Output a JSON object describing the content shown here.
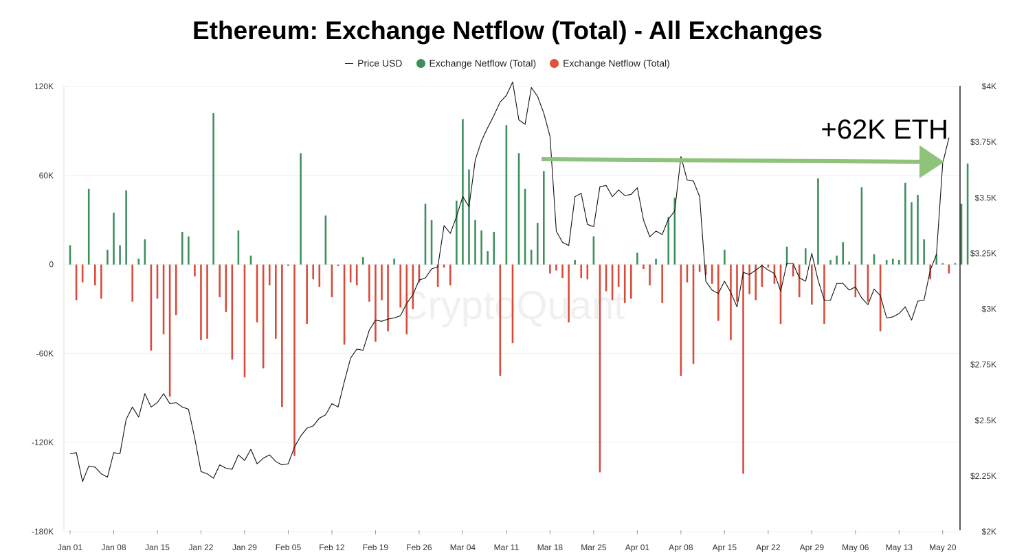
{
  "chart_data": {
    "type": "bar",
    "title": "Ethereum: Exchange Netflow (Total) - All Exchanges",
    "legend": [
      {
        "label": "Price USD",
        "kind": "line",
        "color": "#222222"
      },
      {
        "label": "Exchange Netflow (Total)",
        "kind": "dot",
        "color": "#3e8f5e"
      },
      {
        "label": "Exchange Netflow (Total)",
        "kind": "dot",
        "color": "#e0503c"
      }
    ],
    "colors": {
      "positive": "#3e8f5e",
      "negative": "#d84b3a",
      "price": "#111111",
      "arrow": "#8fc27a"
    },
    "watermark": "CryptoQuant",
    "annotation": "+62K ETH",
    "left_axis": {
      "min": -180000,
      "max": 120000,
      "ticks": [
        {
          "value": 120000,
          "label": "120K"
        },
        {
          "value": 60000,
          "label": "60K"
        },
        {
          "value": 0,
          "label": "0"
        },
        {
          "value": -60000,
          "label": "-60K"
        },
        {
          "value": -120000,
          "label": "-120K"
        },
        {
          "value": -180000,
          "label": "-180K"
        }
      ]
    },
    "right_axis": {
      "min": 2000,
      "max": 4000,
      "ticks": [
        {
          "value": 4000,
          "label": "$4K"
        },
        {
          "value": 3750,
          "label": "$3.75K"
        },
        {
          "value": 3500,
          "label": "$3.5K"
        },
        {
          "value": 3250,
          "label": "$3.25K"
        },
        {
          "value": 3000,
          "label": "$3K"
        },
        {
          "value": 2750,
          "label": "$2.75K"
        },
        {
          "value": 2500,
          "label": "$2.5K"
        },
        {
          "value": 2250,
          "label": "$2.25K"
        },
        {
          "value": 2000,
          "label": "$2K"
        }
      ]
    },
    "x_ticks": [
      {
        "day": 0,
        "label": "Jan 01"
      },
      {
        "day": 7,
        "label": "Jan 08"
      },
      {
        "day": 14,
        "label": "Jan 15"
      },
      {
        "day": 21,
        "label": "Jan 22"
      },
      {
        "day": 28,
        "label": "Jan 29"
      },
      {
        "day": 35,
        "label": "Feb 05"
      },
      {
        "day": 42,
        "label": "Feb 12"
      },
      {
        "day": 49,
        "label": "Feb 19"
      },
      {
        "day": 56,
        "label": "Feb 26"
      },
      {
        "day": 63,
        "label": "Mar 04"
      },
      {
        "day": 70,
        "label": "Mar 11"
      },
      {
        "day": 77,
        "label": "Mar 18"
      },
      {
        "day": 84,
        "label": "Mar 25"
      },
      {
        "day": 91,
        "label": "Apr 01"
      },
      {
        "day": 98,
        "label": "Apr 08"
      },
      {
        "day": 105,
        "label": "Apr 15"
      },
      {
        "day": 112,
        "label": "Apr 22"
      },
      {
        "day": 119,
        "label": "Apr 29"
      },
      {
        "day": 126,
        "label": "May 06"
      },
      {
        "day": 133,
        "label": "May 13"
      },
      {
        "day": 140,
        "label": "May 20"
      }
    ],
    "netflow": [
      13000,
      -24000,
      -12000,
      51000,
      -14000,
      -23000,
      10000,
      35000,
      13000,
      50000,
      -25000,
      4000,
      17000,
      -58000,
      -23000,
      -47000,
      -89000,
      -34000,
      22000,
      19000,
      -8000,
      -51000,
      -50000,
      102000,
      -22000,
      -32000,
      -64000,
      23000,
      -76000,
      6000,
      -39000,
      -70000,
      -14000,
      -50000,
      -96000,
      -1000,
      -129000,
      75000,
      -40000,
      -10000,
      -15000,
      33000,
      -22000,
      -1000,
      -54000,
      -12000,
      -14000,
      5000,
      -25000,
      -52000,
      -24000,
      -45000,
      4000,
      -29000,
      -47000,
      -30000,
      -12000,
      41000,
      30000,
      -15000,
      -2000,
      -14000,
      43000,
      98000,
      64000,
      30000,
      23000,
      9000,
      22000,
      -75000,
      94000,
      -53000,
      75000,
      51000,
      10000,
      28000,
      63000,
      -6000,
      -4000,
      -9000,
      -39000,
      3000,
      -9000,
      -10000,
      19000,
      -140000,
      -18000,
      -24000,
      -15000,
      -26000,
      -23000,
      8000,
      -3000,
      -14000,
      4000,
      -26000,
      32000,
      45000,
      -75000,
      -12000,
      -67000,
      -5000,
      -7000,
      -13000,
      -38000,
      10000,
      -51000,
      -25000,
      -141000,
      -20000,
      -24000,
      -15000,
      -2000,
      -13000,
      -40000,
      12000,
      -8000,
      -22000,
      11000,
      -27000,
      58000,
      -40000,
      3000,
      6000,
      15000,
      2000,
      -22000,
      52000,
      -25000,
      7000,
      -45000,
      3000,
      4000,
      3000,
      55000,
      42000,
      47000,
      17000,
      -10000,
      7000,
      1000,
      -6000,
      1000,
      41000,
      68000
    ],
    "price": [
      2350,
      2355,
      2225,
      2295,
      2290,
      2260,
      2245,
      2355,
      2350,
      2505,
      2560,
      2515,
      2620,
      2560,
      2580,
      2620,
      2575,
      2580,
      2560,
      2550,
      2420,
      2270,
      2260,
      2240,
      2300,
      2285,
      2280,
      2345,
      2320,
      2370,
      2305,
      2330,
      2345,
      2315,
      2300,
      2305,
      2380,
      2430,
      2465,
      2475,
      2510,
      2525,
      2575,
      2560,
      2675,
      2780,
      2820,
      2815,
      2905,
      2950,
      2945,
      2955,
      2960,
      2970,
      3025,
      3065,
      3130,
      3140,
      3180,
      3190,
      3375,
      3340,
      3415,
      3505,
      3460,
      3670,
      3755,
      3815,
      3870,
      3930,
      3960,
      4020,
      3850,
      3830,
      3995,
      3955,
      3880,
      3775,
      3350,
      3300,
      3285,
      3505,
      3520,
      3380,
      3370,
      3550,
      3555,
      3505,
      3535,
      3510,
      3515,
      3545,
      3400,
      3325,
      3350,
      3335,
      3405,
      3440,
      3685,
      3580,
      3575,
      3505,
      3125,
      3085,
      3070,
      3125,
      3075,
      3010,
      3165,
      3155,
      3175,
      3195,
      3175,
      3160,
      3080,
      3205,
      3205,
      3140,
      3125,
      3250,
      3130,
      3040,
      3040,
      3115,
      3115,
      3085,
      3100,
      3050,
      3020,
      3090,
      3060,
      2960,
      2965,
      2980,
      3010,
      2950,
      3035,
      3040,
      3175,
      3245,
      3655,
      3770
    ]
  }
}
